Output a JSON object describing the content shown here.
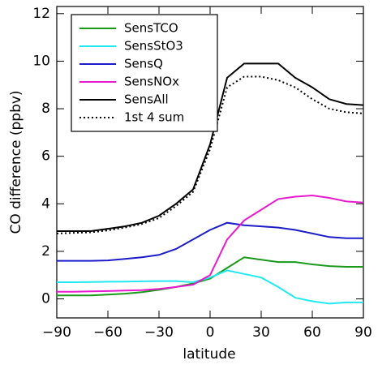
{
  "chart_data": {
    "type": "line",
    "xlabel": "latitude",
    "ylabel": "CO difference (ppbv)",
    "x": [
      -90,
      -80,
      -70,
      -60,
      -50,
      -40,
      -30,
      -20,
      -10,
      0,
      10,
      20,
      30,
      40,
      50,
      60,
      70,
      80,
      90
    ],
    "series": [
      {
        "name": "SensTCO",
        "color": "#1a9a1a",
        "dash": "solid",
        "values": [
          0.15,
          0.15,
          0.15,
          0.18,
          0.22,
          0.28,
          0.38,
          0.5,
          0.65,
          0.85,
          1.3,
          1.75,
          1.65,
          1.55,
          1.55,
          1.45,
          1.38,
          1.35,
          1.35
        ]
      },
      {
        "name": "SensStO3",
        "color": "#22e8f0",
        "dash": "solid",
        "values": [
          0.7,
          0.7,
          0.71,
          0.72,
          0.73,
          0.74,
          0.75,
          0.75,
          0.7,
          0.9,
          1.2,
          1.05,
          0.9,
          0.5,
          0.05,
          -0.1,
          -0.2,
          -0.15,
          -0.15
        ]
      },
      {
        "name": "SensQ",
        "color": "#1c1cc8",
        "dash": "solid",
        "values": [
          1.6,
          1.6,
          1.6,
          1.62,
          1.68,
          1.75,
          1.85,
          2.1,
          2.5,
          2.9,
          3.2,
          3.1,
          3.05,
          3.0,
          2.9,
          2.75,
          2.6,
          2.55,
          2.55
        ]
      },
      {
        "name": "SensNOx",
        "color": "#e81ad0",
        "dash": "solid",
        "values": [
          0.3,
          0.3,
          0.32,
          0.33,
          0.35,
          0.37,
          0.42,
          0.5,
          0.6,
          1.0,
          2.5,
          3.3,
          3.75,
          4.2,
          4.3,
          4.35,
          4.25,
          4.1,
          4.05
        ]
      },
      {
        "name": "SensAll",
        "color": "#000000",
        "dash": "solid",
        "values": [
          2.85,
          2.85,
          2.85,
          2.95,
          3.05,
          3.2,
          3.5,
          4.0,
          4.6,
          6.5,
          9.3,
          9.9,
          9.9,
          9.9,
          9.3,
          8.9,
          8.4,
          8.2,
          8.15
        ]
      },
      {
        "name": "1st 4 sum",
        "color": "#000000",
        "dash": "dotted",
        "values": [
          2.75,
          2.78,
          2.8,
          2.88,
          3.0,
          3.15,
          3.4,
          3.9,
          4.5,
          6.3,
          8.9,
          9.35,
          9.35,
          9.2,
          8.9,
          8.4,
          8.0,
          7.85,
          7.8
        ]
      }
    ],
    "xlim": [
      -90,
      90
    ],
    "xticks": [
      {
        "value": -90,
        "label": "−90"
      },
      {
        "value": -60,
        "label": "−60"
      },
      {
        "value": -30,
        "label": "−30"
      },
      0,
      30,
      60,
      90
    ],
    "ylim": [
      -0.8,
      12.3
    ],
    "yticks": [
      0,
      2,
      4,
      6,
      8,
      10,
      12
    ],
    "legend": "upper left"
  }
}
